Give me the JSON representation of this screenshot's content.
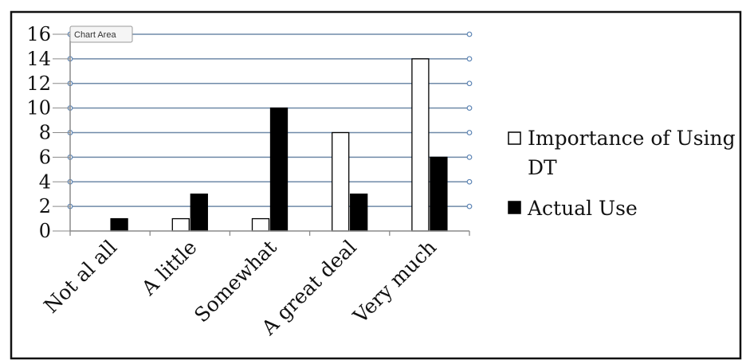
{
  "tooltip": {
    "label": "Chart Area"
  },
  "chart_data": {
    "type": "bar",
    "categories": [
      "Not al all",
      "A little",
      "Somewhat",
      "A great deal",
      "Very much"
    ],
    "series": [
      {
        "name": "Importance of Using DT",
        "values": [
          0,
          1,
          1,
          8,
          14
        ],
        "fill": "#ffffff",
        "stroke": "#000000"
      },
      {
        "name": "Actual Use",
        "values": [
          1,
          3,
          10,
          3,
          6
        ],
        "fill": "#000000",
        "stroke": "#000000"
      }
    ],
    "legend_display_lines": [
      [
        "Importance of Using",
        "DT"
      ],
      [
        "Actual Use"
      ]
    ],
    "title": "",
    "xlabel": "",
    "ylabel": "",
    "ylim": [
      0,
      16
    ],
    "yticks": [
      0,
      2,
      4,
      6,
      8,
      10,
      12,
      14,
      16
    ],
    "grid": true,
    "legend_position": "right",
    "colors": {
      "grid": "#6f8aa8",
      "axis": "#8a8a8a",
      "frame": "#111111",
      "handle_fill": "#ffffff",
      "handle_stroke": "#5d85b5"
    }
  }
}
